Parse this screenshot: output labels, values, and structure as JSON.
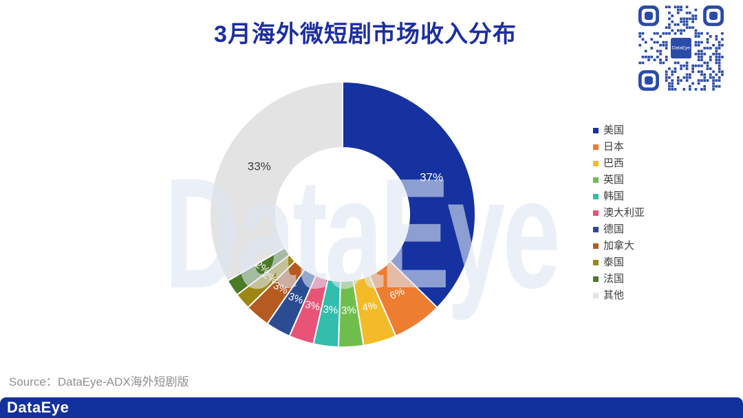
{
  "title": "3月海外微短剧市场收入分布",
  "title_color": "#1D2EA1",
  "watermark": "DataEye",
  "source": {
    "text": "Source：DataEye-ADX海外短剧版"
  },
  "footer": {
    "logo": "DataEye",
    "bar_color": "#12319C"
  },
  "qr": {
    "color": "#2B4BA8",
    "center_label": "DataEye"
  },
  "chart_data": {
    "type": "pie",
    "subtype": "donut",
    "title": "3月海外微短剧市场收入分布",
    "unit": "%",
    "legend_position": "right",
    "start_angle_deg": 0,
    "direction": "clockwise",
    "inner_radius_ratio": 0.5,
    "categories": [
      "美国",
      "日本",
      "巴西",
      "英国",
      "韩国",
      "澳大利亚",
      "德国",
      "加拿大",
      "泰国",
      "法国",
      "其他"
    ],
    "values": [
      37,
      6,
      4,
      3,
      3,
      3,
      3,
      3,
      2,
      2,
      33
    ],
    "labels": [
      "37%",
      "6%",
      "4%",
      "3%",
      "3%",
      "3%",
      "3%",
      "3%",
      "2%",
      "2%",
      "33%"
    ],
    "colors": [
      "#1532A0",
      "#ED7D31",
      "#F2BB27",
      "#6FBE4D",
      "#32BDAD",
      "#E85478",
      "#2B4C92",
      "#B55A20",
      "#9D8713",
      "#4C7A27",
      "#E3E3E3"
    ],
    "label_colors": [
      "#FFFFFF",
      "#FFFFFF",
      "#FFFFFF",
      "#FFFFFF",
      "#FFFFFF",
      "#FFFFFF",
      "#FFFFFF",
      "#FFFFFF",
      "#FFFFFF",
      "#FFFFFF",
      "#404040"
    ]
  }
}
